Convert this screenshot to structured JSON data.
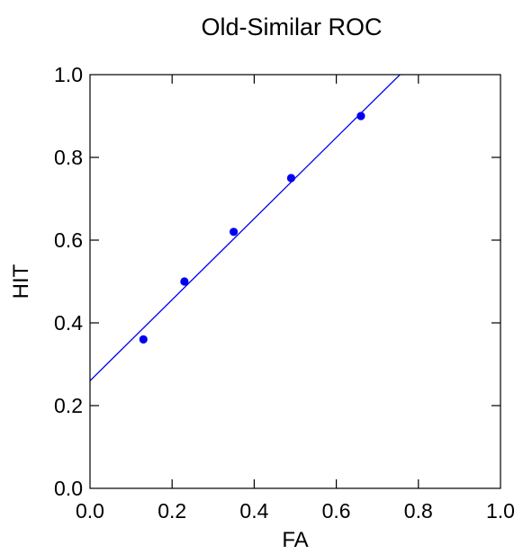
{
  "chart_data": {
    "type": "scatter",
    "title": "Old-Similar ROC",
    "xlabel": "FA",
    "ylabel": "HIT",
    "xlim": [
      0.0,
      1.0
    ],
    "ylim": [
      0.0,
      1.0
    ],
    "x_ticks": [
      0.0,
      0.2,
      0.4,
      0.6,
      0.8,
      1.0
    ],
    "y_ticks": [
      0.0,
      0.2,
      0.4,
      0.6,
      0.8,
      1.0
    ],
    "x_tick_labels": [
      "0.0",
      "0.2",
      "0.4",
      "0.6",
      "0.8",
      "1.0"
    ],
    "y_tick_labels": [
      "0.0",
      "0.2",
      "0.4",
      "0.6",
      "0.8",
      "1.0"
    ],
    "grid": false,
    "legend": "none",
    "series": [
      {
        "type": "scatter",
        "color": "#0000ee",
        "points": [
          {
            "x": 0.13,
            "y": 0.36
          },
          {
            "x": 0.23,
            "y": 0.5
          },
          {
            "x": 0.35,
            "y": 0.62
          },
          {
            "x": 0.49,
            "y": 0.75
          },
          {
            "x": 0.66,
            "y": 0.9
          }
        ]
      },
      {
        "type": "line",
        "color": "#0000ee",
        "fit": {
          "intercept": 0.26,
          "slope": 0.98
        }
      }
    ]
  }
}
